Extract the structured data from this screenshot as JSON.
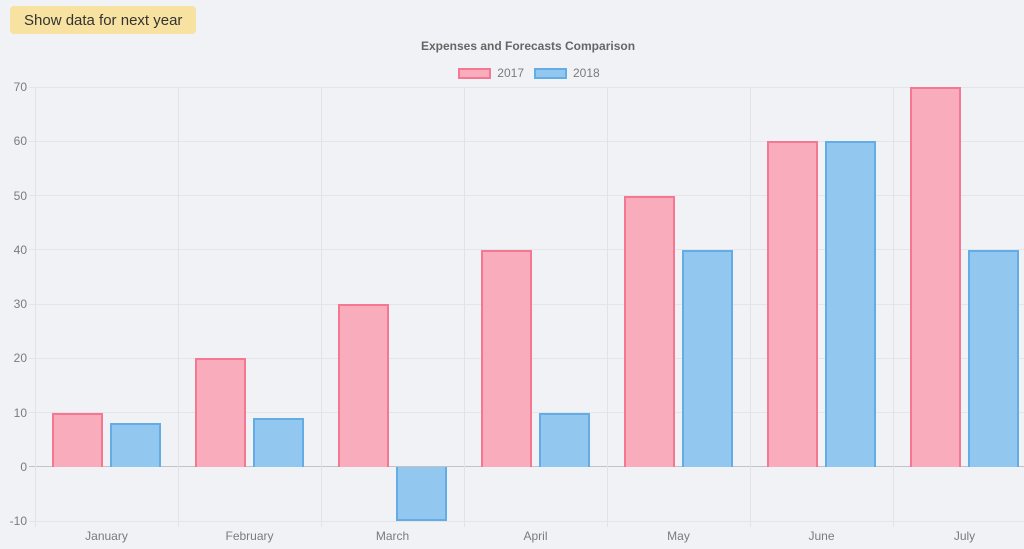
{
  "toolbar": {
    "next_year_button_label": "Show data for next year",
    "next_year_button_bg": "#f8e2a2"
  },
  "chart_data": {
    "type": "bar",
    "title": "Expenses and Forecasts Comparison",
    "categories": [
      "January",
      "February",
      "March",
      "April",
      "May",
      "June",
      "July"
    ],
    "series": [
      {
        "name": "2017",
        "values": [
          10,
          20,
          30,
          40,
          50,
          60,
          70
        ],
        "fill_color": "#f9adbc",
        "border_color": "#f57791"
      },
      {
        "name": "2018",
        "values": [
          8,
          9,
          -10,
          10,
          40,
          60,
          40
        ],
        "fill_color": "#92c8f0",
        "border_color": "#64ace5"
      }
    ],
    "ylim": [
      -10,
      70
    ],
    "yticks": [
      -10,
      0,
      10,
      20,
      30,
      40,
      50,
      60,
      70
    ],
    "grid": true,
    "legend_position": "top",
    "background_color": "#f1f2f6",
    "gridline_color": "#e4e5e9",
    "zero_line_color": "#c2c3c7",
    "tick_label_color": "#7b7b7b"
  }
}
